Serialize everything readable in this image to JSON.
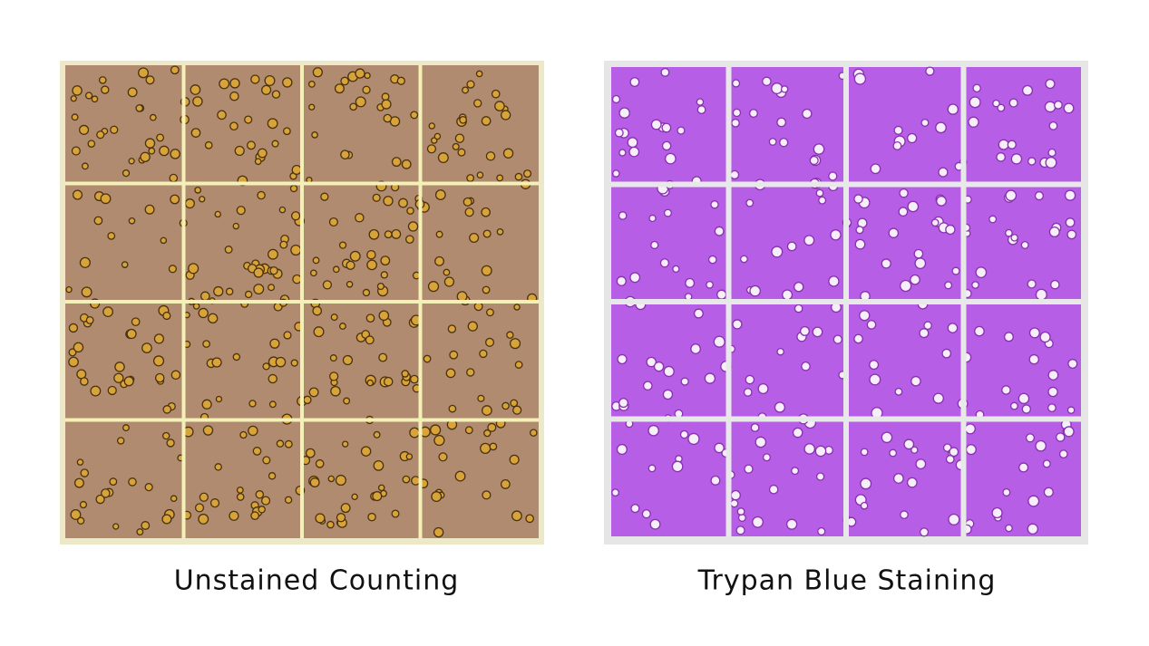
{
  "panels": [
    {
      "caption": "Unstained Counting"
    },
    {
      "caption": "Trypan Blue Staining"
    }
  ]
}
